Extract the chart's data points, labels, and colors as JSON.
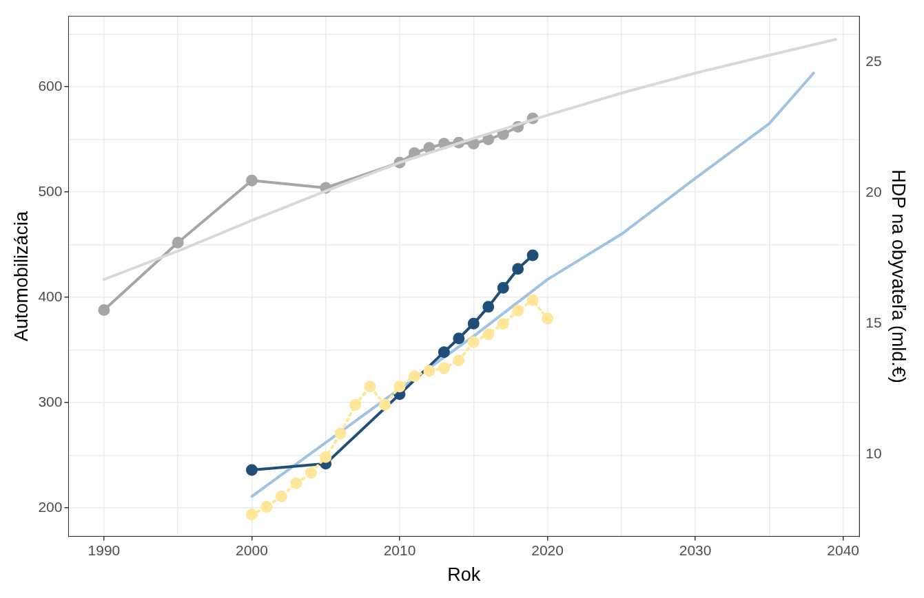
{
  "chart_data": {
    "type": "line",
    "xlabel": "Rok",
    "ylabel": "Automobilizácia",
    "y2label": "HDP na obyvateľa (mld.€)",
    "xlim": [
      1987.6,
      2041.1
    ],
    "xticks": [
      1990,
      {
        "value": 1995,
        "label": null
      },
      2000,
      {
        "value": 2005,
        "label": null
      },
      2010,
      {
        "value": 2015,
        "label": null
      },
      2020,
      {
        "value": 2025,
        "label": null
      },
      2030,
      {
        "value": 2035,
        "label": null
      },
      2040
    ],
    "ylim": [
      173,
      667
    ],
    "yticks": [
      200,
      {
        "value": 250,
        "label": null
      },
      300,
      {
        "value": 350,
        "label": null
      },
      400,
      {
        "value": 450,
        "label": null
      },
      500,
      {
        "value": 550,
        "label": null
      },
      600,
      {
        "value": 650,
        "label": null
      }
    ],
    "y2lim": [
      6.87,
      26.76
    ],
    "y2ticks": [
      10,
      15,
      20,
      25
    ],
    "grid": true,
    "legend": false,
    "series": [
      {
        "type": "line",
        "color": "#d9d9d9",
        "marker": "none",
        "line_style": "solid",
        "x": [
          1990,
          1995,
          2000,
          2005,
          2010,
          2015,
          2020,
          2025,
          2030,
          2035,
          2039.5
        ],
        "values": [
          417,
          444,
          473,
          501,
          528,
          551,
          573,
          594,
          613,
          630,
          645
        ]
      },
      {
        "type": "line",
        "color": "#a6a6a6",
        "marker": "circle",
        "line_style": "solid",
        "x": [
          1990,
          1995,
          2000,
          2005,
          2010,
          2011,
          2012,
          2013,
          2014,
          2015,
          2016,
          2017,
          2018,
          2019
        ],
        "values": [
          388,
          452,
          511,
          504,
          528,
          537,
          542,
          546,
          547,
          546,
          550,
          555,
          562,
          570
        ]
      },
      {
        "type": "line",
        "color": "#ffe699",
        "marker": "circle",
        "line_style": "dotted",
        "axis": "y2",
        "x": [
          2000,
          2001,
          2002,
          2003,
          2004,
          2005,
          2006,
          2007,
          2008,
          2009,
          2010,
          2011,
          2012,
          2013,
          2014,
          2015,
          2016,
          2017,
          2018,
          2019,
          2020
        ],
        "values": [
          7.7,
          8.0,
          8.4,
          8.9,
          9.3,
          9.9,
          10.8,
          11.9,
          12.6,
          11.9,
          12.6,
          13.0,
          13.2,
          13.3,
          13.6,
          14.3,
          14.6,
          15.0,
          15.5,
          15.9,
          15.2
        ]
      },
      {
        "type": "line",
        "color": "#1f4e79",
        "marker": "circle",
        "line_style": "solid",
        "x": [
          2000,
          2005,
          2010,
          2013,
          2014,
          2015,
          2016,
          2017,
          2018,
          2019
        ],
        "values": [
          236,
          242,
          308,
          348,
          361,
          375,
          391,
          409,
          427,
          440
        ]
      },
      {
        "type": "line",
        "color": "#9dc3e6",
        "marker": "none",
        "line_style": "solid",
        "x": [
          2000,
          2005,
          2010,
          2015,
          2020,
          2025,
          2030,
          2035,
          2038
        ],
        "values": [
          211,
          262,
          313,
          363,
          417,
          460,
          513,
          565,
          613
        ]
      }
    ]
  }
}
